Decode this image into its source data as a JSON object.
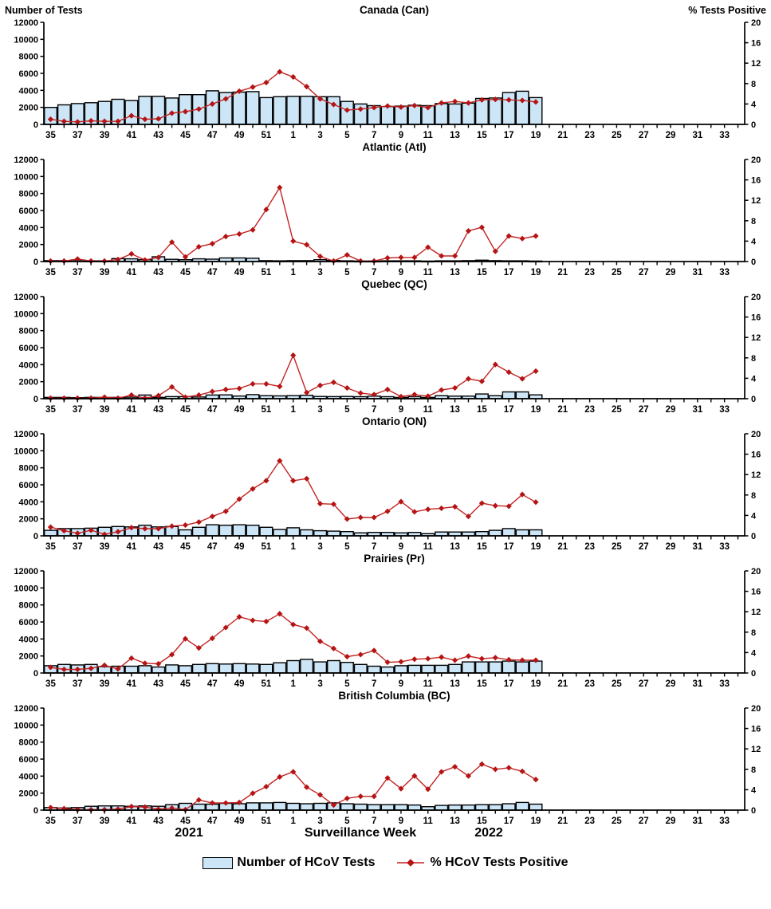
{
  "header": {
    "left_axis_title": "Number of Tests",
    "right_axis_title": "% Tests Positive"
  },
  "footer": {
    "year_left": "2021",
    "x_axis_title": "Surveillance Week",
    "year_right": "2022"
  },
  "legend": {
    "bars_label": "Number of HCoV Tests",
    "line_label": "% HCoV Tests Positive"
  },
  "colors": {
    "bar_fill": "#cce6f8",
    "bar_border": "#000000",
    "line": "#c42323",
    "marker": "#b51414",
    "axis": "#000000"
  },
  "chart_data": {
    "type": "bar",
    "note": "Six stacked combo panels: bars = number of HCoV tests (left axis), line with diamond markers = % HCoV tests positive (right axis).",
    "x_axis_weeks": [
      35,
      36,
      37,
      38,
      39,
      40,
      41,
      42,
      43,
      44,
      45,
      46,
      47,
      48,
      49,
      50,
      51,
      52,
      1,
      2,
      3,
      4,
      5,
      6,
      7,
      8,
      9,
      10,
      11,
      12,
      13,
      14,
      15,
      16,
      17,
      18,
      19,
      20,
      21,
      22,
      23,
      24,
      25,
      26,
      27,
      28,
      29,
      30,
      31,
      32,
      33,
      34
    ],
    "x_tick_label_weeks": [
      35,
      37,
      39,
      41,
      43,
      45,
      47,
      49,
      51,
      1,
      3,
      5,
      7,
      9,
      11,
      13,
      15,
      17,
      19,
      21,
      23,
      25,
      27,
      29,
      31,
      33
    ],
    "data_weeks": [
      35,
      36,
      37,
      38,
      39,
      40,
      41,
      42,
      43,
      44,
      45,
      46,
      47,
      48,
      49,
      50,
      51,
      52,
      1,
      2,
      3,
      4,
      5,
      6,
      7,
      8,
      9,
      10,
      11,
      12,
      13,
      14,
      15,
      16,
      17,
      18,
      19
    ],
    "y_left": {
      "label": "Number of Tests",
      "min": 0,
      "max": 12000,
      "step": 2000
    },
    "y_right": {
      "label": "% Tests Positive",
      "min": 0,
      "max": 20,
      "step": 4
    },
    "grid": false,
    "legend_position": "bottom",
    "panels": [
      {
        "title": "Canada (Can)",
        "tests": [
          2000,
          2300,
          2450,
          2550,
          2700,
          2950,
          2800,
          3300,
          3300,
          3100,
          3500,
          3500,
          3950,
          3750,
          3800,
          3850,
          3150,
          3250,
          3300,
          3300,
          3250,
          3250,
          2700,
          2400,
          2200,
          2100,
          2150,
          2250,
          2200,
          2450,
          2400,
          2500,
          3050,
          3100,
          3750,
          3900,
          3150
        ],
        "pct_positive": [
          1.0,
          0.6,
          0.5,
          0.7,
          0.6,
          0.6,
          1.7,
          1.0,
          1.1,
          2.2,
          2.5,
          3.0,
          4.0,
          5.0,
          6.5,
          7.3,
          8.2,
          10.3,
          9.3,
          7.4,
          5.0,
          3.9,
          2.8,
          3.0,
          3.3,
          3.6,
          3.4,
          3.7,
          3.3,
          4.2,
          4.5,
          4.2,
          4.8,
          4.9,
          4.8,
          4.7,
          4.4
        ]
      },
      {
        "title": "Atlantic (Atl)",
        "tests": [
          100,
          100,
          180,
          80,
          80,
          350,
          320,
          220,
          560,
          260,
          220,
          320,
          280,
          420,
          420,
          380,
          100,
          80,
          100,
          100,
          220,
          120,
          80,
          60,
          60,
          80,
          80,
          80,
          60,
          80,
          80,
          100,
          160,
          100,
          80,
          80,
          60
        ],
        "pct_positive": [
          0.1,
          0.1,
          0.5,
          0.1,
          0.1,
          0.4,
          1.5,
          0.3,
          0.8,
          3.8,
          0.9,
          2.9,
          3.5,
          4.9,
          5.4,
          6.2,
          10.2,
          14.5,
          4.0,
          3.3,
          1.0,
          0.1,
          1.3,
          0.1,
          0.1,
          0.7,
          0.8,
          0.8,
          2.8,
          1.1,
          1.1,
          6.0,
          6.7,
          2.0,
          5.0,
          4.5,
          5.0
        ]
      },
      {
        "title": "Quebec (QC)",
        "tests": [
          150,
          150,
          120,
          150,
          150,
          150,
          180,
          430,
          160,
          240,
          240,
          200,
          430,
          450,
          310,
          480,
          350,
          330,
          360,
          400,
          260,
          240,
          260,
          230,
          300,
          230,
          150,
          230,
          150,
          350,
          300,
          300,
          550,
          350,
          800,
          800,
          450
        ],
        "pct_positive": [
          0.1,
          0.1,
          0.1,
          0.1,
          0.3,
          0.1,
          0.7,
          0.1,
          0.6,
          2.3,
          0.3,
          0.7,
          1.4,
          1.8,
          2.0,
          2.9,
          2.9,
          2.4,
          8.5,
          1.2,
          2.6,
          3.2,
          2.1,
          1.1,
          0.8,
          1.8,
          0.4,
          0.8,
          0.5,
          1.7,
          2.1,
          3.9,
          3.4,
          6.7,
          5.2,
          3.9,
          5.4
        ]
      },
      {
        "title": "Ontario (ON)",
        "tests": [
          650,
          850,
          850,
          900,
          1000,
          1100,
          1050,
          1250,
          1050,
          1100,
          700,
          1000,
          1300,
          1250,
          1300,
          1250,
          1000,
          750,
          950,
          700,
          600,
          550,
          500,
          350,
          400,
          400,
          350,
          400,
          250,
          450,
          450,
          450,
          500,
          650,
          850,
          700,
          700
        ],
        "pct_positive": [
          1.7,
          1.0,
          0.5,
          1.1,
          0.3,
          0.8,
          1.6,
          1.4,
          1.4,
          1.9,
          2.1,
          2.7,
          3.8,
          4.8,
          7.2,
          9.2,
          10.8,
          14.7,
          10.8,
          11.2,
          6.3,
          6.2,
          3.3,
          3.6,
          3.6,
          4.8,
          6.7,
          4.7,
          5.2,
          5.4,
          5.7,
          3.8,
          6.4,
          5.9,
          5.8,
          8.1,
          6.6
        ]
      },
      {
        "title": "Prairies (Pr)",
        "tests": [
          850,
          1000,
          950,
          1000,
          750,
          800,
          800,
          850,
          700,
          950,
          850,
          1000,
          1100,
          1050,
          1100,
          1050,
          1000,
          1200,
          1450,
          1600,
          1300,
          1450,
          1250,
          1000,
          800,
          700,
          850,
          900,
          900,
          900,
          1000,
          1300,
          1300,
          1300,
          1400,
          1300,
          1400
        ],
        "pct_positive": [
          1.1,
          0.7,
          0.7,
          0.9,
          1.5,
          0.8,
          2.9,
          1.9,
          1.8,
          3.6,
          6.7,
          4.9,
          6.8,
          8.9,
          11.0,
          10.3,
          10.1,
          11.6,
          9.5,
          8.8,
          6.2,
          4.8,
          3.2,
          3.6,
          4.4,
          2.1,
          2.2,
          2.7,
          2.8,
          3.1,
          2.5,
          3.3,
          2.8,
          3.0,
          2.6,
          2.5,
          2.5
        ]
      },
      {
        "title": "British Columbia (BC)",
        "tests": [
          300,
          250,
          300,
          450,
          500,
          500,
          450,
          500,
          450,
          650,
          800,
          700,
          700,
          800,
          750,
          850,
          850,
          900,
          800,
          750,
          800,
          850,
          750,
          700,
          650,
          650,
          650,
          600,
          400,
          550,
          600,
          600,
          650,
          650,
          750,
          900,
          700
        ],
        "pct_positive": [
          0.5,
          0.3,
          0.1,
          0.1,
          0.1,
          0.2,
          0.7,
          0.6,
          0.2,
          0.4,
          0.1,
          2.0,
          1.4,
          1.4,
          1.5,
          3.3,
          4.6,
          6.5,
          7.5,
          4.5,
          3.0,
          1.0,
          2.3,
          2.7,
          2.7,
          6.3,
          4.2,
          6.7,
          4.1,
          7.5,
          8.5,
          6.7,
          9.0,
          8.0,
          8.3,
          7.6,
          6.0
        ]
      }
    ]
  }
}
